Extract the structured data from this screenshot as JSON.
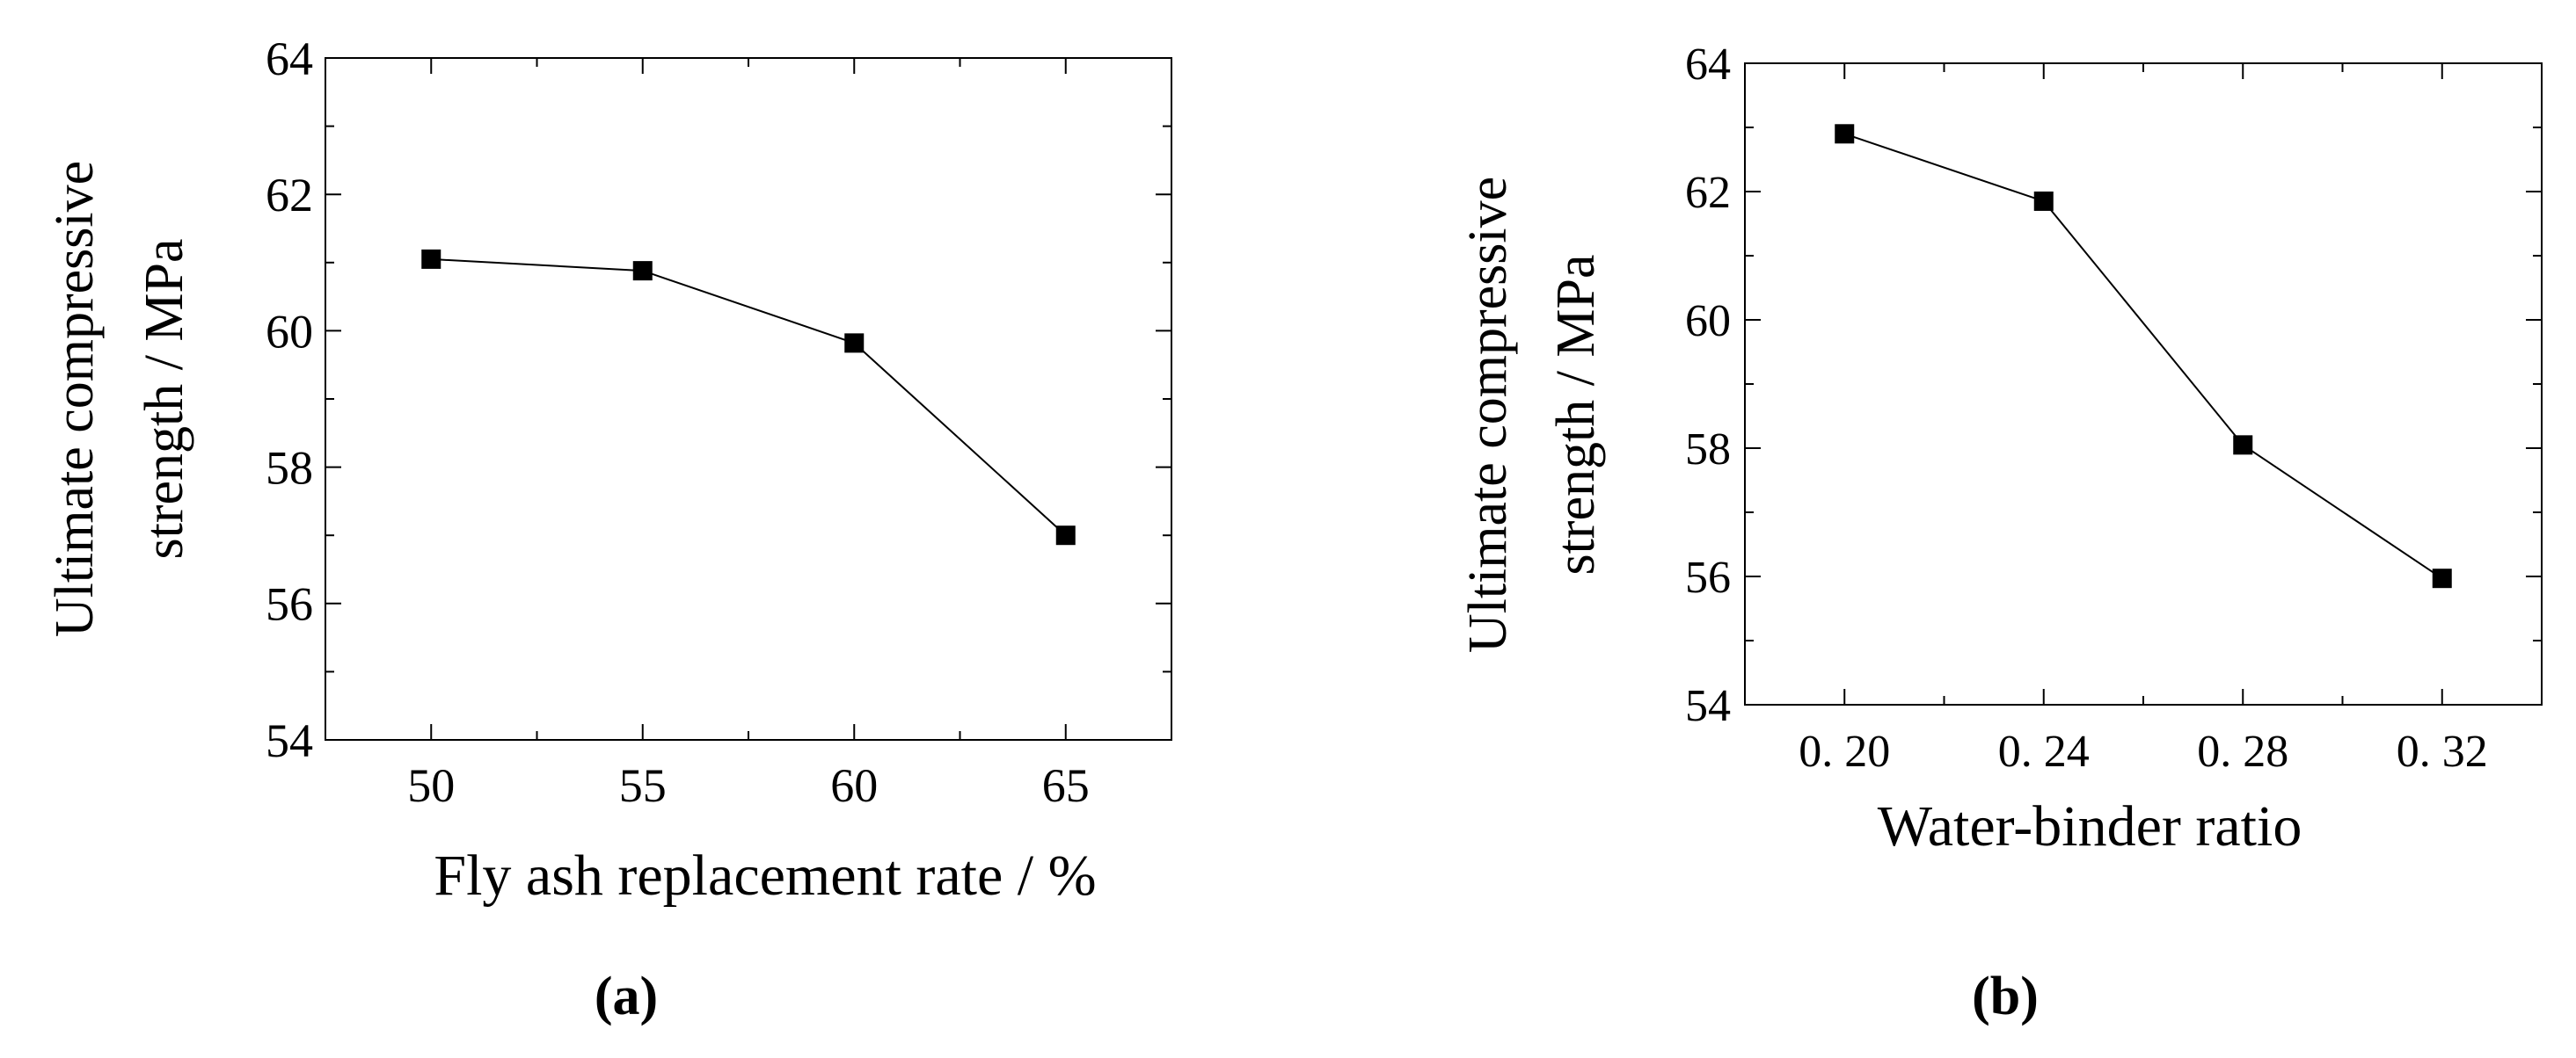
{
  "chart_data": [
    {
      "type": "line",
      "panel_label": "(a)",
      "xlabel": "Fly ash replacement rate / %",
      "ylabel_line1": "Ultimate compressive",
      "ylabel_line2": "strength / MPa",
      "x": [
        50,
        55,
        60,
        65
      ],
      "x_tick_labels": [
        "50",
        "55",
        "60",
        "65"
      ],
      "series": [
        {
          "values": [
            61.05,
            60.88,
            59.82,
            57.0
          ]
        }
      ],
      "xlim": [
        47.5,
        67.5
      ],
      "ylim": [
        54,
        64
      ],
      "y_ticks": [
        54,
        56,
        58,
        60,
        62,
        64
      ],
      "y_tick_labels": [
        "54",
        "56",
        "58",
        "60",
        "62",
        "64"
      ],
      "marker": "square",
      "legend": "none",
      "grid": false
    },
    {
      "type": "line",
      "panel_label": "(b)",
      "xlabel": "Water-binder ratio",
      "ylabel_line1": "Ultimate compressive",
      "ylabel_line2": "strength / MPa",
      "x": [
        0.2,
        0.24,
        0.28,
        0.32
      ],
      "x_tick_labels": [
        "0. 20",
        "0. 24",
        "0. 28",
        "0. 32"
      ],
      "series": [
        {
          "values": [
            62.9,
            61.85,
            58.05,
            55.97
          ]
        }
      ],
      "xlim": [
        0.18,
        0.34
      ],
      "ylim": [
        54,
        64
      ],
      "y_ticks": [
        54,
        56,
        58,
        60,
        62,
        64
      ],
      "y_tick_labels": [
        "54",
        "56",
        "58",
        "60",
        "62",
        "64"
      ],
      "marker": "square",
      "legend": "none",
      "grid": false
    }
  ]
}
